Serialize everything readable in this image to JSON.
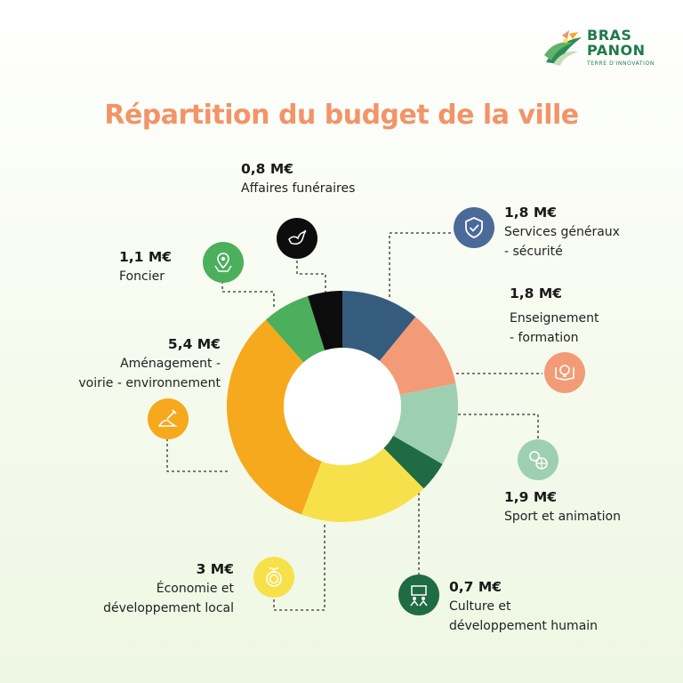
{
  "brand": {
    "line1": "BRAS",
    "line2": "PANON",
    "tagline": "TERRE D'INNOVATION"
  },
  "chart_data": {
    "type": "pie",
    "title": "Répartition du budget de la ville",
    "unit": "M€",
    "slices": [
      {
        "label_lines": [
          "Services généraux",
          "- sécurité"
        ],
        "value": 1.8,
        "value_label": "1,8 M€",
        "color": "#355c7d",
        "icon": "shield-check-icon"
      },
      {
        "label_lines": [
          "Enseignement",
          "- formation"
        ],
        "value": 1.8,
        "value_label": "1,8 M€",
        "color": "#f29b76",
        "icon": "lightbulb-book-icon"
      },
      {
        "label_lines": [
          "Sport et animation"
        ],
        "value": 1.9,
        "value_label": "1,9 M€",
        "color": "#9dd0b0",
        "icon": "sport-balls-icon"
      },
      {
        "label_lines": [
          "Culture et",
          "développement humain"
        ],
        "value": 0.7,
        "value_label": "0,7 M€",
        "color": "#1e6b44",
        "icon": "people-puzzle-icon"
      },
      {
        "label_lines": [
          "Économie et",
          "développement local"
        ],
        "value": 3,
        "value_label": "3 M€",
        "color": "#f7e14a",
        "icon": "plant-coin-icon"
      },
      {
        "label_lines": [
          "Aménagement -",
          "voirie - environnement"
        ],
        "value": 5.4,
        "value_label": "5,4 M€",
        "color": "#f6a91c",
        "icon": "shovel-icon"
      },
      {
        "label_lines": [
          "Foncier"
        ],
        "value": 1.1,
        "value_label": "1,1 M€",
        "color": "#4caf5c",
        "icon": "map-pin-icon"
      },
      {
        "label_lines": [
          "Affaires funéraires"
        ],
        "value": 0.8,
        "value_label": "0,8 M€",
        "color": "#0d0d0d",
        "icon": "dove-icon"
      }
    ],
    "legend": "none"
  }
}
